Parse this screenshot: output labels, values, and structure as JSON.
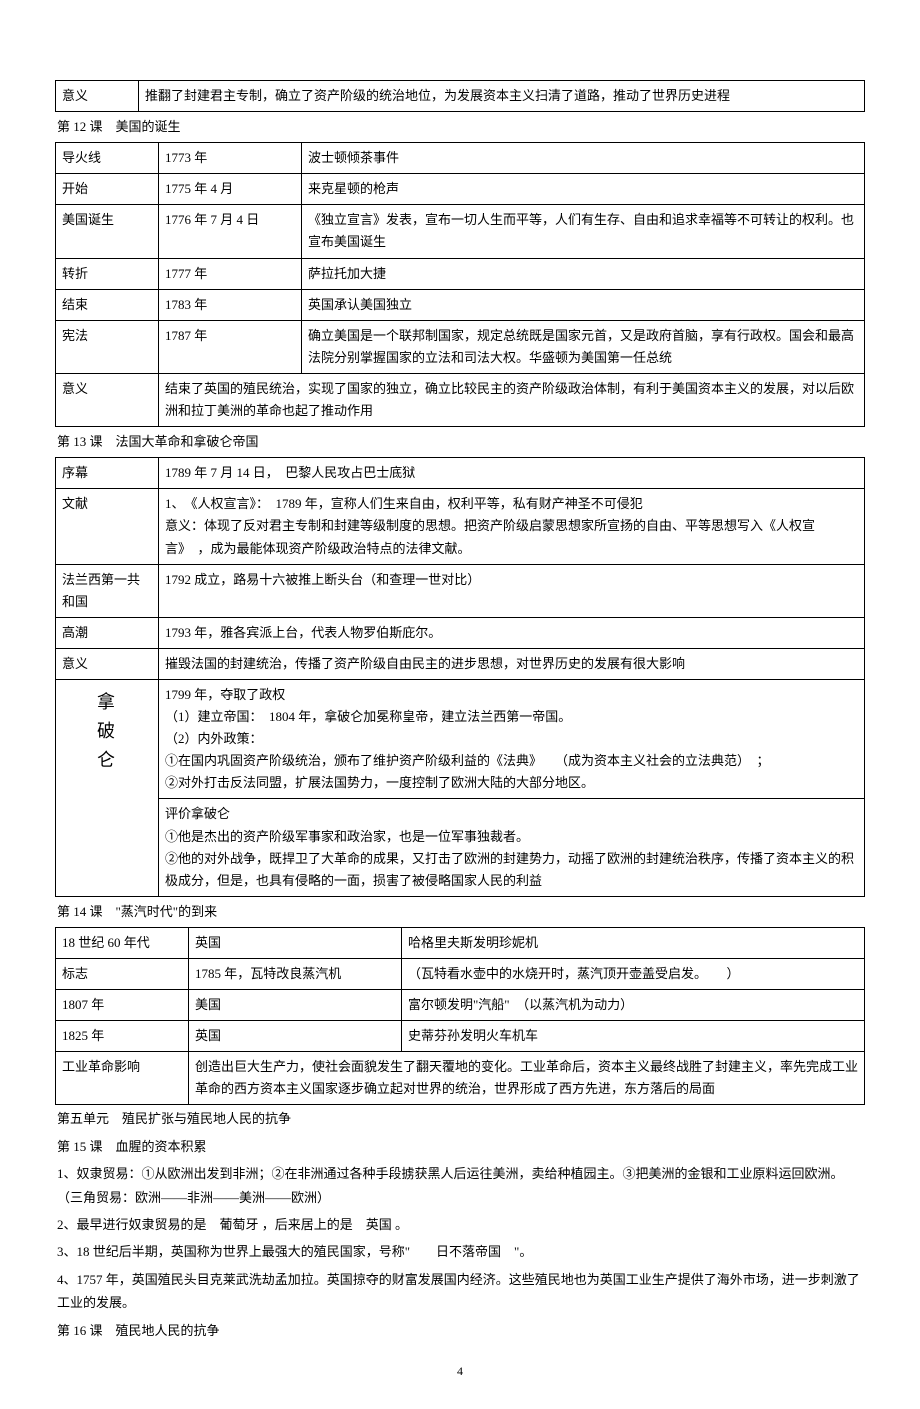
{
  "table1": {
    "r1c1": "意义",
    "r1c2": "推翻了封建君主专制，确立了资产阶级的统治地位，为发展资本主义扫清了道路，推动了世界历史进程"
  },
  "heading12": "第 12 课　美国的诞生",
  "table2": {
    "rows": [
      [
        "导火线",
        "1773 年",
        "波士顿倾茶事件"
      ],
      [
        "开始",
        "1775 年 4 月",
        "来克星顿的枪声"
      ],
      [
        "美国诞生",
        "1776 年 7 月 4 日",
        "《独立宣言》发表，宣布一切人生而平等，人们有生存、自由和追求幸福等不可转让的权利。也宣布美国诞生"
      ],
      [
        "转折",
        "1777 年",
        "萨拉托加大捷"
      ],
      [
        "结束",
        "1783 年",
        "英国承认美国独立"
      ],
      [
        "宪法",
        "1787 年",
        "确立美国是一个联邦制国家，规定总统既是国家元首，又是政府首脑，享有行政权。国会和最高法院分别掌握国家的立法和司法大权。华盛顿为美国第一任总统"
      ]
    ],
    "last": [
      "意义",
      "结束了英国的殖民统治，实现了国家的独立，确立比较民主的资产阶级政治体制，有利于美国资本主义的发展，对以后欧洲和拉丁美洲的革命也起了推动作用"
    ]
  },
  "heading13": "第 13 课　法国大革命和拿破仑帝国",
  "table3": {
    "r1": [
      "序幕",
      "1789 年 7 月 14 日，　巴黎人民攻占巴士底狱"
    ],
    "r2": [
      "文献",
      "1、　《人权宣言》：　1789 年，宣称人们生来自由，权利平等，私有财产神圣不可侵犯\n意义：体现了反对君主专制和封建等级制度的思想。把资产阶级启蒙思想家所宣扬的自由、平等思想写入《人权宣言》　，成为最能体现资产阶级政治特点的法律文献。"
    ],
    "r3": [
      "法兰西第一共和国",
      "1792 成立，路易十六被推上断头台（和查理一世对比）"
    ],
    "r4": [
      "高潮",
      "1793 年，雅各宾派上台，代表人物罗伯斯庇尔。"
    ],
    "r5": [
      "意义",
      "摧毁法国的封建统治，传播了资产阶级自由民主的进步思想，对世界历史的发展有很大影响"
    ],
    "napoleon_label": "拿破仑",
    "nap1": "1799 年，夺取了政权\n（1）建立帝国：　1804 年，拿破仑加冕称皇帝，建立法兰西第一帝国。\n（2）内外政策：\n①在国内巩固资产阶级统治，颁布了维护资产阶级利益的《法典》　　（成为资本主义社会的立法典范）　；\n②对外打击反法同盟，扩展法国势力，一度控制了欧洲大陆的大部分地区。",
    "nap2": "评价拿破仑\n①他是杰出的资产阶级军事家和政治家，也是一位军事独裁者。\n②他的对外战争，既捍卫了大革命的成果，又打击了欧洲的封建势力，动摇了欧洲的封建统治秩序，传播了资本主义的积极成分，但是，也具有侵略的一面，损害了被侵略国家人民的利益"
  },
  "heading14": "第 14 课　\"蒸汽时代\"的到来",
  "table4": {
    "rows": [
      [
        "18 世纪 60 年代",
        "英国",
        "哈格里夫斯发明珍妮机"
      ],
      [
        "标志",
        "1785 年，瓦特改良蒸汽机",
        "（瓦特看水壶中的水烧开时，蒸汽顶开壶盖受启发。　　）"
      ],
      [
        "1807 年",
        "美国",
        "富尔顿发明\"汽船\"　（以蒸汽机为动力）"
      ],
      [
        "1825 年",
        "英国",
        "史蒂芬孙发明火车机车"
      ]
    ],
    "last": [
      "工业革命影响",
      "创造出巨大生产力，使社会面貌发生了翻天覆地的变化。工业革命后，资本主义最终战胜了封建主义，率先完成工业革命的西方资本主义国家逐步确立起对世界的统治，世界形成了西方先进，东方落后的局面"
    ]
  },
  "unit5": "第五单元　殖民扩张与殖民地人民的抗争",
  "heading15": "第 15 课　血腥的资本积累",
  "p1": "1、奴隶贸易：①从欧洲出发到非洲；②在非洲通过各种手段掳获黑人后运往美洲，卖给种植园主。③把美洲的金银和工业原料运回欧洲。　（三角贸易：欧洲——非洲——美洲——欧洲）",
  "p2": "2、最早进行奴隶贸易的是　葡萄牙 ，后来居上的是　英国 。",
  "p3": "3、18 世纪后半期，英国称为世界上最强大的殖民国家，号称\"　　日不落帝国　\"。",
  "p4": "4、1757 年，英国殖民头目克莱武洗劫孟加拉。英国掠夺的财富发展国内经济。这些殖民地也为英国工业生产提供了海外市场，进一步刺激了工业的发展。",
  "heading16": "第 16 课　殖民地人民的抗争",
  "pagenum": "4"
}
